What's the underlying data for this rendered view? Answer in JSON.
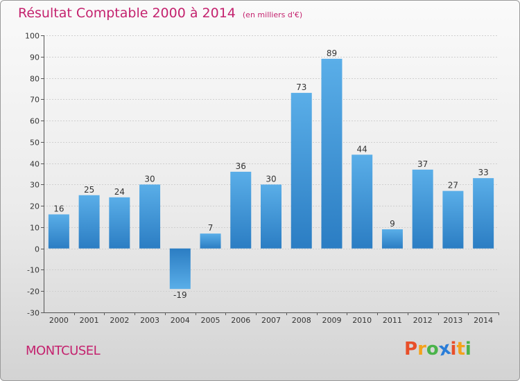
{
  "chart_data": {
    "type": "bar",
    "title": "Résultat Comptable 2000 à 2014",
    "subtitle": "(en milliers d'€)",
    "categories": [
      "2000",
      "2001",
      "2002",
      "2003",
      "2004",
      "2005",
      "2006",
      "2007",
      "2008",
      "2009",
      "2010",
      "2011",
      "2012",
      "2013",
      "2014"
    ],
    "values": [
      16,
      25,
      24,
      30,
      -19,
      7,
      36,
      30,
      73,
      89,
      44,
      9,
      37,
      27,
      33
    ],
    "value_labels": [
      "16",
      "25",
      "24",
      "30",
      "-19",
      "7",
      "36",
      "30",
      "73",
      "89",
      "44",
      "9",
      "37",
      "27",
      "33"
    ],
    "ylim": [
      -30,
      100
    ],
    "yticks": [
      -30,
      -20,
      -10,
      0,
      10,
      20,
      30,
      40,
      50,
      60,
      70,
      80,
      90,
      100
    ],
    "ytick_labels": [
      "-30",
      "-20",
      "-10",
      "0",
      "10",
      "20",
      "30",
      "40",
      "50",
      "60",
      "70",
      "80",
      "90",
      "100"
    ],
    "xlabel": "",
    "ylabel": "",
    "grid": true,
    "bar_color_light": "#5aaee8",
    "bar_color_dark": "#2b7dc3"
  },
  "commune": "MONTCUSEL",
  "logo": {
    "letters": [
      "P",
      "r",
      "o",
      "x",
      "i",
      "t",
      "i"
    ],
    "colors": [
      "#e84f2a",
      "#f4a21c",
      "#4ab34a",
      "#2a7dd8",
      "#e84f2a",
      "#f4a21c",
      "#4ab34a"
    ]
  },
  "colors": {
    "title": "#c4226e",
    "gridline": "#cfcfcf"
  }
}
